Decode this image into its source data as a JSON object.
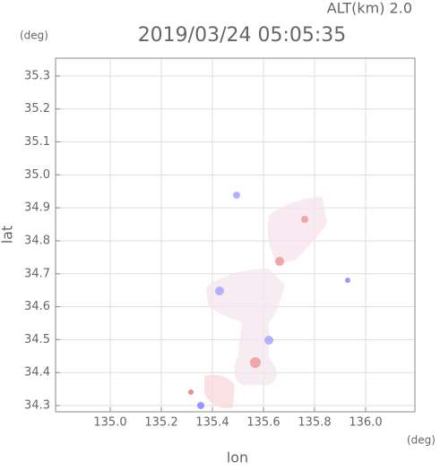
{
  "chart_data": {
    "type": "radar-image",
    "title": "2019/03/24 05:05:35",
    "subtitle": "ALT(km) 2.0",
    "y_unit": "(deg)",
    "x_unit": "(deg)",
    "xlabel": "lon",
    "ylabel": "lat",
    "xlim": [
      134.786,
      136.193
    ],
    "ylim": [
      34.281,
      35.354
    ],
    "xticks": [
      {
        "value": 135,
        "label": "135.0"
      },
      135.2,
      135.4,
      135.6,
      135.8,
      {
        "value": 136,
        "label": "136.0"
      }
    ],
    "yticks": [
      34.3,
      34.4,
      34.5,
      34.6,
      34.7,
      34.8,
      34.9,
      {
        "value": 35,
        "label": "35.0"
      },
      35.1,
      35.2,
      35.3
    ],
    "grid": true
  }
}
